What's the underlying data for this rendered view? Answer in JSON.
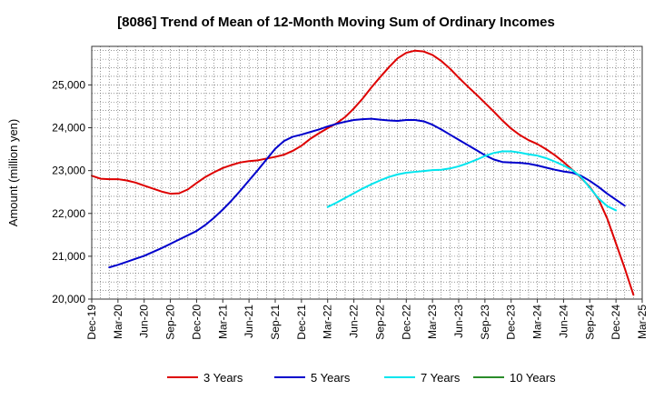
{
  "chart_data": {
    "type": "line",
    "title": "[8086]  Trend of Mean of 12-Month Moving Sum of Ordinary Incomes",
    "xlabel": "",
    "ylabel": "Amount (million yen)",
    "ylim": [
      20000,
      25900
    ],
    "y_ticks": [
      20000,
      21000,
      22000,
      23000,
      24000,
      25000
    ],
    "y_tick_labels": [
      "20,000",
      "21,000",
      "22,000",
      "23,000",
      "24,000",
      "25,000"
    ],
    "x_tick_labels": [
      "Dec-19",
      "Mar-20",
      "Jun-20",
      "Sep-20",
      "Dec-20",
      "Mar-21",
      "Jun-21",
      "Sep-21",
      "Dec-21",
      "Mar-22",
      "Jun-22",
      "Sep-22",
      "Dec-22",
      "Mar-23",
      "Jun-23",
      "Sep-23",
      "Dec-23",
      "Mar-24",
      "Jun-24",
      "Sep-24",
      "Dec-24",
      "Mar-25"
    ],
    "x_start_month": "Dec-19",
    "x_range_months": [
      0,
      63
    ],
    "grid": true,
    "legend_position": "bottom",
    "series": [
      {
        "name": "3 Years",
        "color": "#dd0000",
        "start_index": 0,
        "values": [
          22880,
          22810,
          22800,
          22800,
          22770,
          22720,
          22650,
          22580,
          22510,
          22460,
          22470,
          22560,
          22710,
          22850,
          22960,
          23060,
          23130,
          23190,
          23220,
          23240,
          23280,
          23320,
          23370,
          23460,
          23580,
          23740,
          23870,
          23990,
          24100,
          24250,
          24450,
          24680,
          24940,
          25180,
          25410,
          25620,
          25750,
          25800,
          25780,
          25700,
          25560,
          25380,
          25170,
          24970,
          24780,
          24580,
          24380,
          24170,
          23980,
          23830,
          23710,
          23620,
          23500,
          23360,
          23200,
          23020,
          22830,
          22620,
          22330,
          21880,
          21300,
          20720,
          20100
        ]
      },
      {
        "name": "5 Years",
        "color": "#0000cc",
        "start_index": 2,
        "values": [
          20740,
          20800,
          20870,
          20940,
          21010,
          21100,
          21190,
          21290,
          21390,
          21490,
          21590,
          21730,
          21900,
          22090,
          22300,
          22530,
          22770,
          23010,
          23260,
          23510,
          23690,
          23790,
          23840,
          23900,
          23960,
          24030,
          24090,
          24140,
          24180,
          24200,
          24210,
          24190,
          24170,
          24160,
          24180,
          24180,
          24150,
          24070,
          23960,
          23840,
          23720,
          23600,
          23480,
          23360,
          23260,
          23200,
          23190,
          23180,
          23160,
          23120,
          23070,
          23020,
          22980,
          22950,
          22880,
          22760,
          22620,
          22460,
          22320,
          22180
        ]
      },
      {
        "name": "7 Years",
        "color": "#00e5ee",
        "start_index": 27,
        "values": [
          22150,
          22250,
          22360,
          22470,
          22580,
          22680,
          22770,
          22850,
          22910,
          22950,
          22970,
          22990,
          23010,
          23020,
          23050,
          23100,
          23170,
          23250,
          23340,
          23410,
          23450,
          23450,
          23420,
          23380,
          23350,
          23290,
          23210,
          23120,
          23010,
          22850,
          22600,
          22350,
          22170,
          22070
        ]
      },
      {
        "name": "10 Years",
        "color": "#2a8c2a",
        "start_index": 0,
        "values": []
      }
    ]
  }
}
